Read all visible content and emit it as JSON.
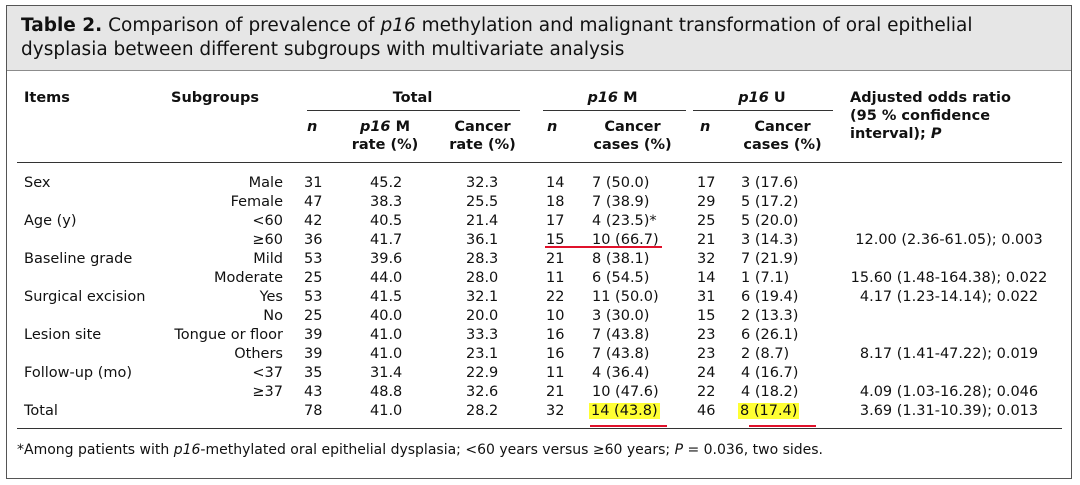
{
  "title": {
    "label": "Table 2.",
    "part1": " Comparison of prevalence of ",
    "italic1": "p16",
    "part2": " methylation and malignant transformation of oral epithelial dysplasia between different subgroups with multivariate analysis"
  },
  "headers": {
    "items": "Items",
    "subgroups": "Subgroups",
    "total": "Total",
    "p16m_italic": "p16",
    "p16m_suffix": " M",
    "p16u_italic": "p16",
    "p16u_suffix": " U",
    "adjusted_line1": "Adjusted odds ratio",
    "adjusted_line2": "(95 % confidence",
    "adjusted_line3": "interval); P",
    "n": "n",
    "rate_italic": "p16",
    "rate_suffix": " M",
    "rate_line2": "rate (%)",
    "cancer_rate_line1": "Cancer",
    "cancer_rate_line2": "rate (%)",
    "cases_line1": "Cancer",
    "cases_line2": "cases (%)"
  },
  "rows": [
    {
      "item": "Sex",
      "subgroup": "Male",
      "n": "31",
      "rate": "45.2",
      "cancer_rate": "32.3",
      "m_n": "14",
      "m_cases": "7 (50.0)",
      "u_n": "17",
      "u_cases": "3 (17.6)",
      "or": ""
    },
    {
      "item": "",
      "subgroup": "Female",
      "n": "47",
      "rate": "38.3",
      "cancer_rate": "25.5",
      "m_n": "18",
      "m_cases": "7 (38.9)",
      "u_n": "29",
      "u_cases": "5 (17.2)",
      "or": ""
    },
    {
      "item": "Age (y)",
      "subgroup": "<60",
      "n": "42",
      "rate": "40.5",
      "cancer_rate": "21.4",
      "m_n": "17",
      "m_cases": "4 (23.5)*",
      "u_n": "25",
      "u_cases": "5 (20.0)",
      "or": ""
    },
    {
      "item": "",
      "subgroup": "≥60",
      "n": "36",
      "rate": "41.7",
      "cancer_rate": "36.1",
      "m_n": "15",
      "m_cases": "10 (66.7)",
      "u_n": "21",
      "u_cases": "3 (14.3)",
      "or": "12.00 (2.36-61.05); 0.003"
    },
    {
      "item": "Baseline grade",
      "subgroup": "Mild",
      "n": "53",
      "rate": "39.6",
      "cancer_rate": "28.3",
      "m_n": "21",
      "m_cases": "8 (38.1)",
      "u_n": "32",
      "u_cases": "7 (21.9)",
      "or": ""
    },
    {
      "item": "",
      "subgroup": "Moderate",
      "n": "25",
      "rate": "44.0",
      "cancer_rate": "28.0",
      "m_n": "11",
      "m_cases": "6 (54.5)",
      "u_n": "14",
      "u_cases": "1 (7.1)",
      "or": "15.60 (1.48-164.38); 0.022"
    },
    {
      "item": "Surgical excision",
      "subgroup": "Yes",
      "n": "53",
      "rate": "41.5",
      "cancer_rate": "32.1",
      "m_n": "22",
      "m_cases": "11 (50.0)",
      "u_n": "31",
      "u_cases": "6 (19.4)",
      "or": "4.17 (1.23-14.14); 0.022"
    },
    {
      "item": "",
      "subgroup": "No",
      "n": "25",
      "rate": "40.0",
      "cancer_rate": "20.0",
      "m_n": "10",
      "m_cases": "3 (30.0)",
      "u_n": "15",
      "u_cases": "2 (13.3)",
      "or": ""
    },
    {
      "item": "Lesion site",
      "subgroup": "Tongue or floor",
      "n": "39",
      "rate": "41.0",
      "cancer_rate": "33.3",
      "m_n": "16",
      "m_cases": "7 (43.8)",
      "u_n": "23",
      "u_cases": "6 (26.1)",
      "or": ""
    },
    {
      "item": "",
      "subgroup": "Others",
      "n": "39",
      "rate": "41.0",
      "cancer_rate": "23.1",
      "m_n": "16",
      "m_cases": "7 (43.8)",
      "u_n": "23",
      "u_cases": "2 (8.7)",
      "or": "8.17 (1.41-47.22); 0.019"
    },
    {
      "item": "Follow-up (mo)",
      "subgroup": "<37",
      "n": "35",
      "rate": "31.4",
      "cancer_rate": "22.9",
      "m_n": "11",
      "m_cases": "4 (36.4)",
      "u_n": "24",
      "u_cases": "4 (16.7)",
      "or": ""
    },
    {
      "item": "",
      "subgroup": "≥37",
      "n": "43",
      "rate": "48.8",
      "cancer_rate": "32.6",
      "m_n": "21",
      "m_cases": "10 (47.6)",
      "u_n": "22",
      "u_cases": "4 (18.2)",
      "or": "4.09 (1.03-16.28); 0.046"
    },
    {
      "item": "Total",
      "subgroup": "",
      "n": "78",
      "rate": "41.0",
      "cancer_rate": "28.2",
      "m_n": "32",
      "m_cases": "14 (43.8)",
      "u_n": "46",
      "u_cases": "8 (17.4)",
      "or": "3.69 (1.31-10.39); 0.013"
    }
  ],
  "footnote": {
    "part1": "*Among patients with ",
    "italic1": "p16",
    "part2": "-methylated oral epithelial dysplasia; <60 years versus ≥60 years; ",
    "italic2": "P",
    "part3": " = 0.036, two sides."
  },
  "annotations": {
    "highlight_color": "#ffff33",
    "underline_color": "#e0112b"
  }
}
